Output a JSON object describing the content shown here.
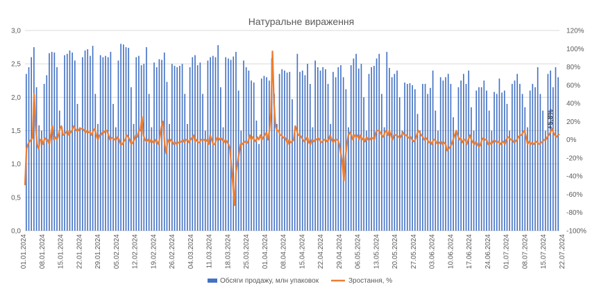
{
  "chart_data": {
    "type": "bar",
    "title": "Натуральне вираження",
    "y_left": {
      "ticks": [
        "0,0",
        "0,5",
        "1,0",
        "1,5",
        "2,0",
        "2,5",
        "3,0"
      ],
      "min": 0,
      "max": 3
    },
    "y_right": {
      "ticks": [
        "-100%",
        "-80%",
        "-60%",
        "-40%",
        "-20%",
        "0%",
        "20%",
        "40%",
        "60%",
        "80%",
        "100%",
        "120%"
      ],
      "min": -100,
      "max": 120
    },
    "x_ticks": [
      "01.01.2024",
      "08.01.2024",
      "15.01.2024",
      "22.01.2024",
      "29.01.2024",
      "05.02.2024",
      "12.02.2024",
      "19.02.2024",
      "26.02.2024",
      "04.03.2024",
      "11.03.2024",
      "18.03.2024",
      "25.03.2024",
      "01.04.2024",
      "08.04.2024",
      "15.04.2024",
      "22.04.2024",
      "29.04.2024",
      "06.05.2024",
      "13.05.2024",
      "20.05.2024",
      "27.05.2024",
      "03.06.2024",
      "10.06.2024",
      "17.06.2024",
      "24.06.2024",
      "01.07.2024",
      "08.07.2024",
      "15.07.2024",
      "22.07.2024"
    ],
    "x_range": {
      "start": "01.01.2024",
      "end": "25.07.2024"
    },
    "grid": true,
    "legend_position": "bottom",
    "series": [
      {
        "name": "Обсяги продажу, млн упаковок",
        "type": "bar",
        "axis": "left",
        "color": "#4472C4",
        "values": [
          2.35,
          2.45,
          2.6,
          2.75,
          2.15,
          1.58,
          1.5,
          2.2,
          2.33,
          2.66,
          2.68,
          2.67,
          2.45,
          1.8,
          1.55,
          2.63,
          2.65,
          2.7,
          2.67,
          2.55,
          1.9,
          1.55,
          2.6,
          2.7,
          2.72,
          2.62,
          2.77,
          2.05,
          1.6,
          2.63,
          2.6,
          2.62,
          2.6,
          2.68,
          1.9,
          1.55,
          2.55,
          2.8,
          2.79,
          2.75,
          2.74,
          2.15,
          1.6,
          2.6,
          2.62,
          2.48,
          2.5,
          2.75,
          2.05,
          1.55,
          2.52,
          2.45,
          2.57,
          2.56,
          2.67,
          2.23,
          1.6,
          2.5,
          2.47,
          2.45,
          2.47,
          2.5,
          2.05,
          1.6,
          2.45,
          2.6,
          2.63,
          2.48,
          2.52,
          2.05,
          1.5,
          2.55,
          2.6,
          2.62,
          2.6,
          2.78,
          2.15,
          1.55,
          2.6,
          2.58,
          2.56,
          2.61,
          2.68,
          2.1,
          1.5,
          2.55,
          2.45,
          2.4,
          2.25,
          2.22,
          1.65,
          1.3,
          2.28,
          2.32,
          2.3,
          2.25,
          2.58,
          2.05,
          1.6,
          2.35,
          2.42,
          2.4,
          2.37,
          2.38,
          1.97,
          1.5,
          2.65,
          2.38,
          2.4,
          2.33,
          2.5,
          2.2,
          1.55,
          2.55,
          2.45,
          2.4,
          2.45,
          2.42,
          2.2,
          1.6,
          2.38,
          2.3,
          2.45,
          2.48,
          2.3,
          2.12,
          1.55,
          2.48,
          2.58,
          2.65,
          2.43,
          2.5,
          2.0,
          1.5,
          2.35,
          2.45,
          2.47,
          2.58,
          2.65,
          2.05,
          1.55,
          2.68,
          2.44,
          2.3,
          2.35,
          2.4,
          2.0,
          1.5,
          2.22,
          2.2,
          2.21,
          2.18,
          2.12,
          1.75,
          1.5,
          2.2,
          2.2,
          2.05,
          2.14,
          2.4,
          1.8,
          1.5,
          2.3,
          2.25,
          2.3,
          2.35,
          2.2,
          1.7,
          1.5,
          2.15,
          2.25,
          2.35,
          2.2,
          2.4,
          1.85,
          1.5,
          2.1,
          2.15,
          2.15,
          2.25,
          2.1,
          1.8,
          1.5,
          2.08,
          2.05,
          2.28,
          2.07,
          2.1,
          1.9,
          1.5,
          2.2,
          2.25,
          2.35,
          2.2,
          2.05,
          1.85,
          1.55,
          2.1,
          2.2,
          2.15,
          2.45,
          2.05,
          1.8,
          1.5,
          2.35,
          2.4,
          2.15,
          2.45,
          2.3
        ]
      },
      {
        "name": "Зростання, %",
        "type": "line",
        "axis": "right",
        "color": "#ED7D31",
        "values": [
          -50,
          -10,
          -5,
          -2,
          0,
          2,
          50,
          15,
          -5,
          -10,
          0,
          0,
          -5,
          2,
          0,
          0,
          -5,
          5,
          15,
          0,
          3,
          0,
          5,
          12,
          15,
          5,
          6,
          8,
          10,
          5,
          8,
          10,
          15,
          12,
          10,
          10,
          12,
          12,
          12,
          10,
          8,
          10,
          8,
          8,
          5,
          10,
          12,
          5,
          0,
          5,
          5,
          8,
          8,
          10,
          10,
          5,
          0,
          2,
          2,
          0,
          0,
          3,
          0,
          -5,
          -5,
          -2,
          0,
          5,
          3,
          0,
          -5,
          -3,
          0,
          5,
          3,
          10,
          10,
          25,
          5,
          0,
          -2,
          0,
          -3,
          0,
          -2,
          -4,
          0,
          -2,
          -5,
          5,
          15,
          20,
          -5,
          -15,
          0,
          -3,
          0,
          -2,
          -5,
          -3,
          -5,
          -3,
          -3,
          -2,
          0,
          -3,
          0,
          0,
          -3,
          0,
          2,
          5,
          -2,
          0,
          -3,
          -3,
          0,
          0,
          0,
          -2,
          0,
          -5,
          5,
          0,
          -5,
          -5,
          0,
          3,
          0,
          2,
          0,
          -3,
          0,
          -2,
          -5,
          -10,
          -30,
          -50,
          -72,
          -35,
          -25,
          -15,
          -5,
          -5,
          -3,
          -2,
          -4,
          -2,
          5,
          0,
          3,
          0,
          -2,
          3,
          0,
          5,
          0,
          3,
          5,
          8,
          0,
          10,
          30,
          97,
          40,
          15,
          10,
          10,
          5,
          5,
          2,
          3,
          0,
          -5,
          0,
          -3,
          -2,
          0,
          15,
          10,
          5,
          5,
          3,
          0,
          -2,
          0,
          3,
          -3,
          -5,
          0,
          -2,
          0,
          0,
          2,
          0,
          -3,
          -2,
          0,
          0,
          -2,
          0,
          5,
          0,
          -3,
          0,
          0,
          0,
          -5,
          -15,
          -25,
          -45,
          -20,
          -5,
          5,
          8,
          5,
          0,
          5,
          3,
          5,
          0,
          5,
          0,
          2,
          -2,
          3,
          0,
          0,
          2,
          2,
          0,
          8,
          10,
          10,
          8,
          5,
          3,
          8,
          10,
          5,
          10,
          5,
          0,
          5,
          5,
          5,
          3,
          2,
          5,
          8,
          5,
          5,
          3,
          2,
          3,
          0,
          -2,
          0,
          5,
          10,
          8,
          5,
          3,
          0,
          2,
          0,
          -3,
          -2,
          -5,
          0,
          0,
          -3,
          -5,
          -3,
          -2,
          -5,
          -3,
          -5,
          -12,
          -10,
          -8,
          -5,
          0,
          5,
          10,
          5,
          0,
          2,
          -3,
          0,
          0,
          -5,
          0,
          5,
          0,
          -3,
          -5,
          -2,
          -5,
          -8,
          -5,
          0,
          2,
          0,
          0,
          -5,
          -3,
          -5,
          -3,
          0,
          -2,
          -3,
          -2,
          -5,
          -3,
          -2,
          -5,
          0,
          3,
          2,
          0,
          0,
          -3,
          -2,
          0,
          3,
          5,
          5,
          8,
          10,
          3,
          -5,
          -2,
          -5,
          -3,
          -5,
          -3,
          -2,
          -4,
          -5,
          -3,
          -2,
          0,
          0,
          3,
          5,
          8,
          12,
          8,
          5,
          3,
          5,
          6
        ],
        "annotation": "+5,8%"
      }
    ]
  }
}
